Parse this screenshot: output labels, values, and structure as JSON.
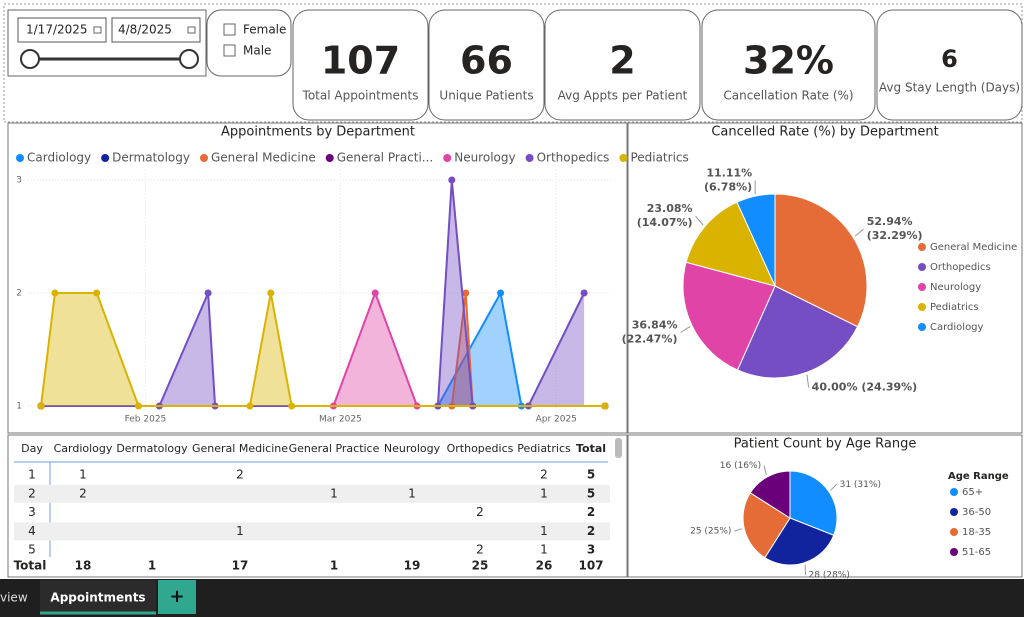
{
  "filters": {
    "start_date": "1/17/2025",
    "end_date": "4/8/2025",
    "gender_options": [
      "Female",
      "Male"
    ]
  },
  "kpis": [
    {
      "value": "107",
      "label": "Total Appointments"
    },
    {
      "value": "66",
      "label": "Unique Patients"
    },
    {
      "value": "2",
      "label": "Avg Appts per Patient"
    },
    {
      "value": "32%",
      "label": "Cancellation Rate (%)"
    },
    {
      "value": "6",
      "label": "Avg Stay Length (Days)"
    }
  ],
  "chart_data": [
    {
      "type": "area",
      "title": "Appointments by Department",
      "xlim": [
        0,
        81
      ],
      "xticks": [
        {
          "value": 15,
          "label": "Feb 2025"
        },
        {
          "value": 43,
          "label": "Mar 2025"
        },
        {
          "value": 74,
          "label": "Apr 2025"
        }
      ],
      "ylim": [
        1,
        3
      ],
      "yticks": [
        1,
        2,
        3
      ],
      "grid": true,
      "series": [
        {
          "name": "Cardiology",
          "color": "#118dff",
          "x": [
            0,
            57,
            66,
            69,
            81
          ],
          "values": [
            1,
            1,
            2,
            1,
            1
          ]
        },
        {
          "name": "Dermatology",
          "color": "#12239e",
          "x": [
            0,
            81
          ],
          "values": [
            1,
            1
          ]
        },
        {
          "name": "General Medicine",
          "color": "#e66c37",
          "x": [
            0,
            59,
            61,
            62,
            81
          ],
          "values": [
            1,
            1,
            2,
            1,
            1
          ]
        },
        {
          "name": "General Practi...",
          "color": "#6b007b",
          "x": [
            0,
            81
          ],
          "values": [
            1,
            1
          ]
        },
        {
          "name": "Neurology",
          "color": "#e044a7",
          "x": [
            0,
            42,
            48,
            54,
            81
          ],
          "values": [
            1,
            1,
            2,
            1,
            1
          ]
        },
        {
          "name": "Orthopedics",
          "color": "#744ec2",
          "x": [
            0,
            17,
            24,
            25,
            57,
            59,
            62,
            70,
            78
          ],
          "values": [
            1,
            1,
            2,
            1,
            1,
            3,
            1,
            1,
            2
          ]
        },
        {
          "name": "Pediatrics",
          "color": "#d9b300",
          "x": [
            0,
            2,
            8,
            14,
            30,
            33,
            36,
            81
          ],
          "values": [
            1,
            2,
            2,
            1,
            1,
            2,
            1,
            1
          ]
        }
      ]
    },
    {
      "type": "pie",
      "title": "Cancelled Rate (%) by Department",
      "categories": [
        "General Medicine",
        "Orthopedics",
        "Neurology",
        "Pediatrics",
        "Cardiology"
      ],
      "colors": [
        "#e66c37",
        "#744ec2",
        "#e044a7",
        "#d9b300",
        "#118dff"
      ],
      "values": [
        32.29,
        24.39,
        22.47,
        14.07,
        6.78
      ],
      "value_labels": [
        [
          "52.94%",
          "(32.29%)"
        ],
        [
          "40.00% (24.39%)"
        ],
        [
          "36.84%",
          "(22.47%)"
        ],
        [
          "23.08%",
          "(14.07%)"
        ],
        [
          "11.11%",
          "(6.78%)"
        ]
      ]
    },
    {
      "type": "pie",
      "title": "Patient Count by Age Range",
      "legend_title": "Age Range",
      "categories": [
        "65+",
        "36-50",
        "18-35",
        "51-65"
      ],
      "colors": [
        "#118dff",
        "#12239e",
        "#e66c37",
        "#6b007b"
      ],
      "values": [
        31,
        28,
        25,
        16
      ],
      "value_labels": [
        "31 (31%)",
        "28 (28%)",
        "25 (25%)",
        "16 (16%)"
      ]
    }
  ],
  "table": {
    "columns": [
      "Day",
      "Cardiology",
      "Dermatology",
      "General Medicine",
      "General Practice",
      "Neurology",
      "Orthopedics",
      "Pediatrics",
      "Total"
    ],
    "rows": [
      [
        "1",
        "1",
        null,
        "2",
        null,
        null,
        null,
        "2",
        "5"
      ],
      [
        "2",
        "2",
        null,
        null,
        "1",
        "1",
        null,
        "1",
        "5"
      ],
      [
        "3",
        null,
        null,
        null,
        null,
        null,
        "2",
        null,
        "2"
      ],
      [
        "4",
        null,
        null,
        "1",
        null,
        null,
        null,
        "1",
        "2"
      ],
      [
        "5",
        null,
        null,
        null,
        null,
        null,
        "2",
        "1",
        "3"
      ]
    ],
    "totals": [
      "Total",
      "18",
      "1",
      "17",
      "1",
      "19",
      "25",
      "26",
      "107"
    ]
  },
  "tabs": [
    "view",
    "Appointments",
    "+"
  ]
}
